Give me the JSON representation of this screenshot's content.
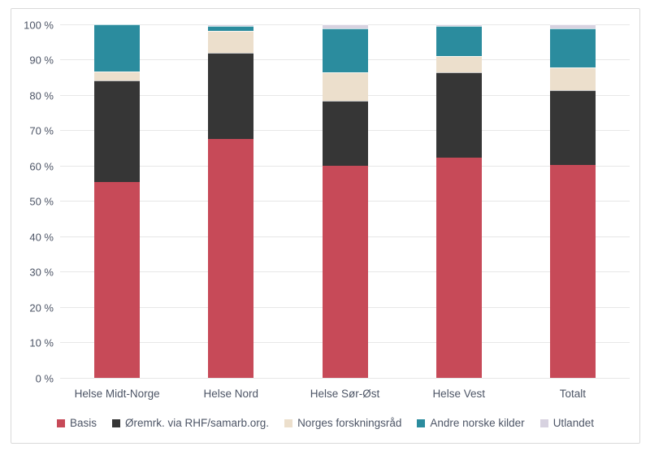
{
  "chart_data": {
    "type": "bar",
    "subtype": "stacked-percent",
    "title": "",
    "xlabel": "",
    "ylabel": "",
    "ylim": [
      0,
      100
    ],
    "ytick_step": 10,
    "ytick_suffix": " %",
    "grid": true,
    "legend_position": "bottom",
    "categories": [
      "Helse Midt-Norge",
      "Helse Nord",
      "Helse Sør-Øst",
      "Helse Vest",
      "Totalt"
    ],
    "series": [
      {
        "name": "Basis",
        "color": "#c74a58",
        "values": [
          55.5,
          67.7,
          60.0,
          62.2,
          60.3
        ]
      },
      {
        "name": "Øremrk. via RHF/samarb.org.",
        "color": "#363636",
        "values": [
          28.6,
          24.3,
          18.3,
          24.2,
          21.1
        ]
      },
      {
        "name": "Norges forskningsråd",
        "color": "#ecdfcc",
        "values": [
          2.6,
          6.1,
          8.1,
          4.6,
          6.5
        ]
      },
      {
        "name": "Andre norske kilder",
        "color": "#2b8c9e",
        "values": [
          13.3,
          1.5,
          12.4,
          8.5,
          11.0
        ]
      },
      {
        "name": "Utlandet",
        "color": "#d7d2e0",
        "values": [
          0.0,
          0.4,
          1.2,
          0.5,
          1.1
        ]
      }
    ]
  },
  "colors": {
    "gridline": "#e7e7e7",
    "frame_border": "#d9d9d9",
    "axis_text": "#4d5566",
    "background": "#ffffff",
    "segment_separator": "rgba(255,255,255,0.7)"
  }
}
